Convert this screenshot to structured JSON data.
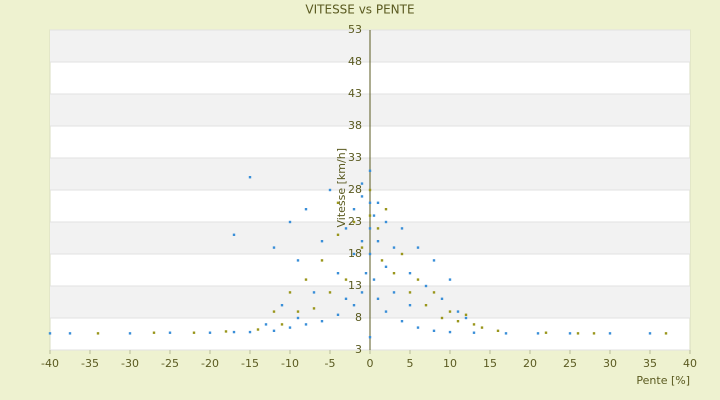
{
  "chart_data": {
    "type": "scatter",
    "title": "VITESSE vs PENTE",
    "x_label": "Pente [%]",
    "y_label": "Vitesse [km/h]",
    "xlim": [
      -40,
      40
    ],
    "xticks": [
      -40,
      -35,
      -30,
      -25,
      -20,
      -15,
      -10,
      -5,
      0,
      5,
      10,
      15,
      20,
      25,
      30,
      35,
      40
    ],
    "ylim": [
      3,
      53
    ],
    "yticks": [
      3,
      8,
      13,
      18,
      23,
      28,
      33,
      38,
      43,
      48,
      53
    ],
    "grid": true,
    "series": [
      {
        "color": "#9a961c",
        "x": [
          -34,
          -27,
          -22,
          -18,
          -14,
          -11,
          -9,
          -8,
          -7,
          -6,
          -5,
          -4,
          -3,
          -2,
          -1,
          0,
          1,
          1.5,
          2,
          3,
          4,
          5,
          6,
          7,
          8,
          9,
          10,
          11,
          12,
          13,
          14,
          16,
          22,
          26,
          28,
          37,
          -10,
          -12,
          0,
          -4
        ],
        "values": [
          5.6,
          5.7,
          5.7,
          5.9,
          6.2,
          7,
          9,
          14,
          9.5,
          17,
          12,
          21,
          14,
          23,
          19,
          24,
          22,
          17,
          25,
          15,
          18,
          12,
          14,
          10,
          12,
          8,
          9,
          7.5,
          8.5,
          7,
          6.5,
          6,
          5.7,
          5.6,
          5.6,
          5.6,
          12,
          9,
          28,
          26
        ]
      },
      {
        "color": "#3a8fd8",
        "x": [
          -40,
          -37.5,
          -30,
          -25,
          -20,
          -17,
          -15,
          -12,
          -10,
          -8,
          -6,
          -4,
          -2,
          -1,
          -0.5,
          0,
          0,
          0,
          0,
          0.5,
          1,
          2,
          4,
          6,
          8,
          10,
          13,
          17,
          21,
          25,
          30,
          35,
          -15,
          -17,
          -12,
          -10,
          -9,
          -8,
          -7,
          -6,
          -5,
          -4,
          -3,
          -3,
          -2,
          -2,
          -1,
          -1,
          1,
          1,
          2,
          2,
          3,
          3,
          4,
          5,
          5,
          6,
          7,
          8,
          9,
          10,
          11,
          12,
          -11,
          -13,
          -9,
          0,
          -1,
          0.5
        ],
        "values": [
          5.6,
          5.6,
          5.6,
          5.7,
          5.7,
          5.8,
          5.8,
          6,
          6.5,
          7,
          7.5,
          8.5,
          10,
          12,
          15,
          18,
          22,
          26,
          5,
          14,
          11,
          9,
          7.5,
          6.5,
          6,
          5.8,
          5.7,
          5.6,
          5.6,
          5.6,
          5.6,
          5.6,
          30,
          21,
          19,
          23,
          17,
          25,
          12,
          20,
          28,
          15,
          22,
          11,
          25,
          18,
          27,
          20,
          26,
          20,
          23,
          16,
          19,
          12,
          22,
          15,
          10,
          19,
          13,
          17,
          11,
          14,
          9,
          8,
          10,
          7,
          8,
          31,
          29,
          24
        ]
      }
    ]
  }
}
